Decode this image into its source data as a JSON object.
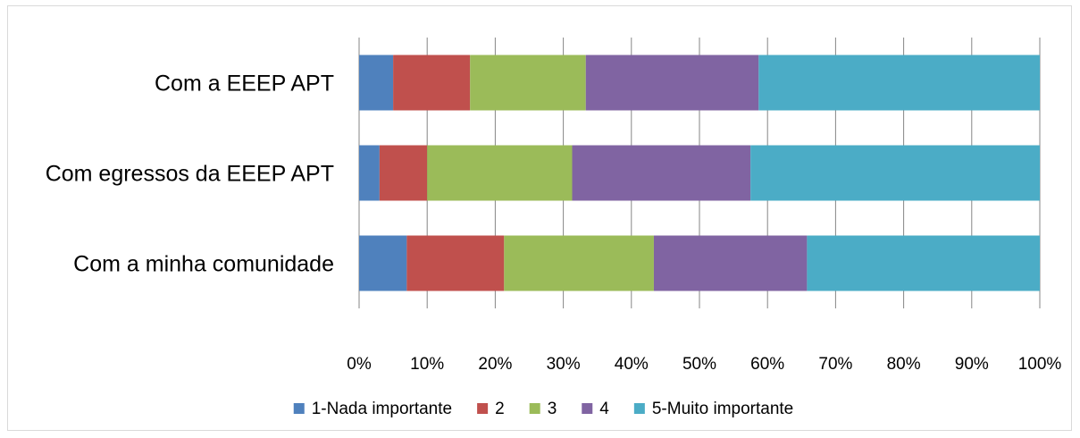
{
  "chart_data": {
    "type": "bar",
    "orientation": "horizontal",
    "stacked": "percent",
    "categories": [
      "Com a EEEP APT",
      "Com egressos da EEEP APT",
      "Com a minha comunidade"
    ],
    "series": [
      {
        "name": "1-Nada importante",
        "color": "#4f81bd",
        "values": [
          5,
          3,
          7
        ]
      },
      {
        "name": "2",
        "color": "#c0504d",
        "values": [
          11.3,
          7,
          14.3
        ]
      },
      {
        "name": "3",
        "color": "#9bbb59",
        "values": [
          17,
          21.3,
          22
        ]
      },
      {
        "name": "4",
        "color": "#8064a2",
        "values": [
          25.4,
          26.2,
          22.5
        ]
      },
      {
        "name": "5-Muito importante",
        "color": "#4bacc6",
        "values": [
          41.3,
          42.5,
          34.2
        ]
      }
    ],
    "xticks": [
      "0%",
      "10%",
      "20%",
      "30%",
      "40%",
      "50%",
      "60%",
      "70%",
      "80%",
      "90%",
      "100%"
    ],
    "xlim": [
      0,
      100
    ],
    "grid": true,
    "legend_position": "bottom"
  }
}
